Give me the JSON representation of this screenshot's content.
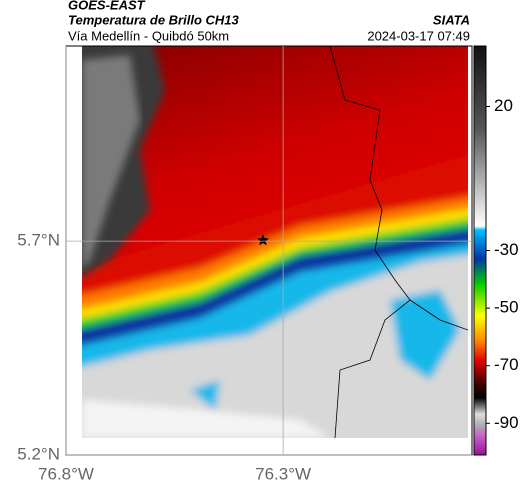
{
  "header": {
    "satellite": "GOES-EAST",
    "product": "Temperatura de Brillo CH13",
    "route": "Vía Medellín - Quibdó 50km",
    "source": "SIATA",
    "timestamp": "2024-03-17 07:49"
  },
  "map": {
    "xlim": [
      -76.8,
      -75.865
    ],
    "ylim": [
      5.2,
      6.156
    ],
    "xticks": [
      {
        "value": -76.8,
        "label": "76.8°W"
      },
      {
        "value": -76.3,
        "label": "76.3°W"
      }
    ],
    "yticks": [
      {
        "value": 5.2,
        "label": "5.2°N"
      },
      {
        "value": 5.7,
        "label": "5.7°N"
      }
    ],
    "grid": true
  },
  "colorbar": {
    "lim": [
      -101,
      41
    ],
    "ticks": [
      20,
      -30,
      -50,
      -70,
      -90
    ]
  }
}
